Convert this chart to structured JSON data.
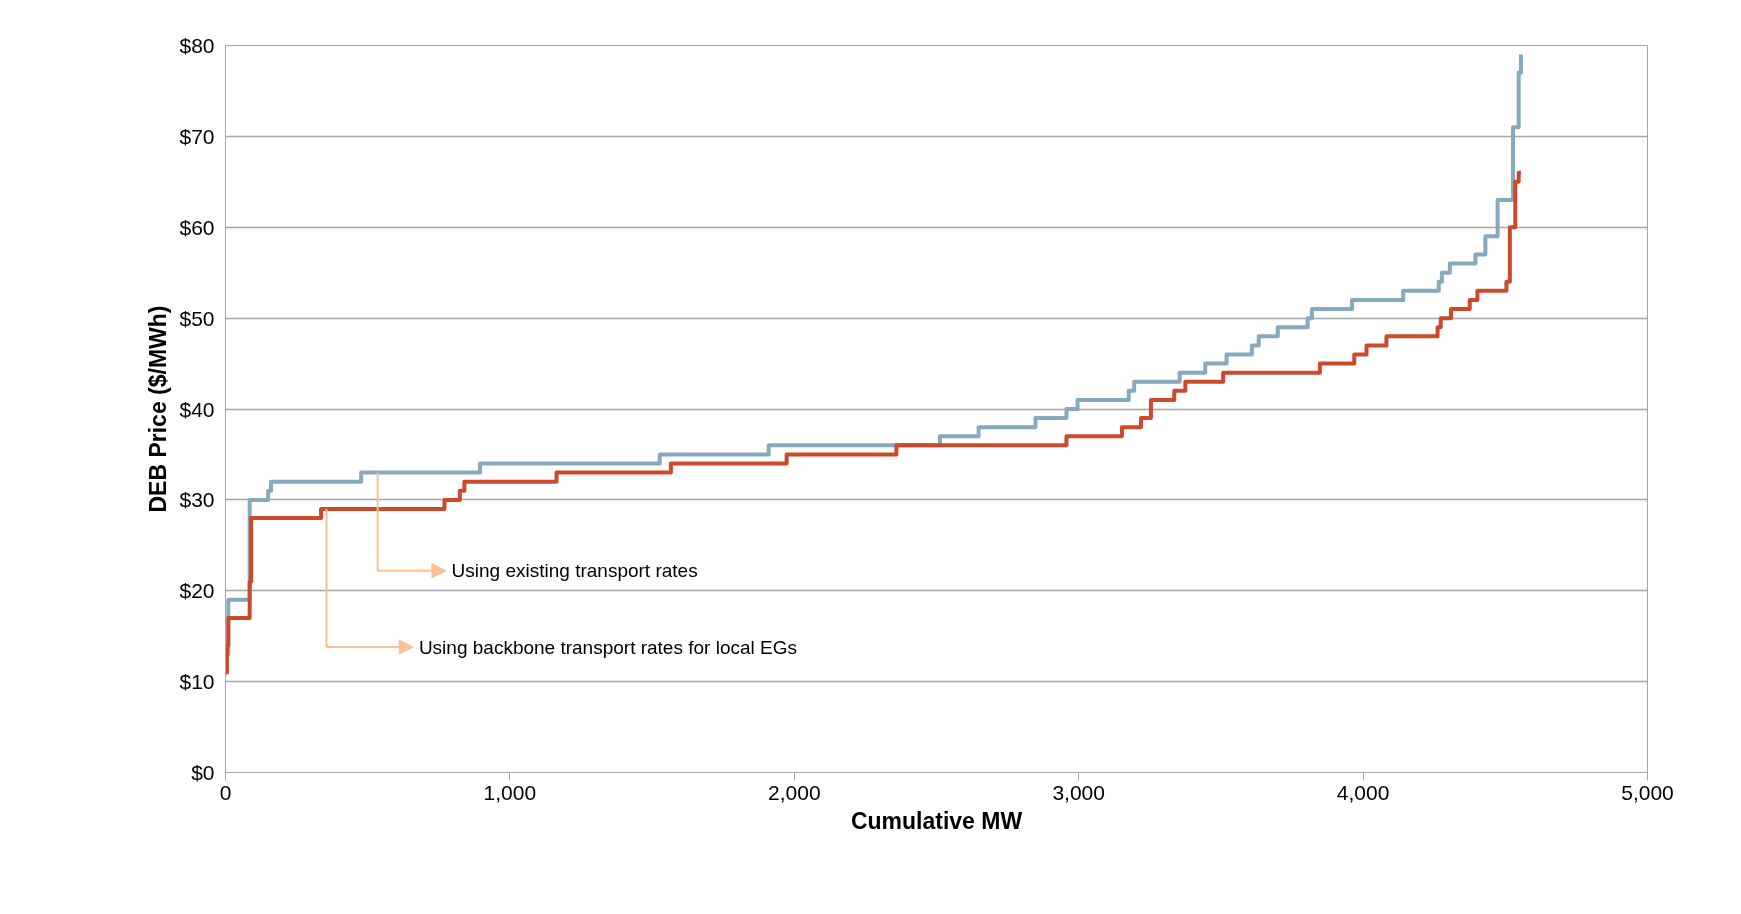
{
  "chart_data": {
    "type": "step",
    "xlabel": "Cumulative MW",
    "ylabel": "DEB Price ($/MWh)",
    "xlim": [
      0,
      5000
    ],
    "ylim": [
      0,
      80
    ],
    "xticks": [
      0,
      {
        "value": 1000,
        "label": "1,000"
      },
      {
        "value": 2000,
        "label": "2,000"
      },
      {
        "value": 3000,
        "label": "3,000"
      },
      {
        "value": 4000,
        "label": "4,000"
      },
      {
        "value": 5000,
        "label": "5,000"
      }
    ],
    "yticks": [
      {
        "value": 0,
        "label": "$0"
      },
      {
        "value": 10,
        "label": "$10"
      },
      {
        "value": 20,
        "label": "$20"
      },
      {
        "value": 30,
        "label": "$30"
      },
      {
        "value": 40,
        "label": "$40"
      },
      {
        "value": 50,
        "label": "$50"
      },
      {
        "value": 60,
        "label": "$60"
      },
      {
        "value": 70,
        "label": "$70"
      },
      {
        "value": 80,
        "label": "$80"
      }
    ],
    "grid": "y",
    "marker": "none",
    "line_style": "solid",
    "series": [
      {
        "color": "#86a9bd",
        "x": [
          0,
          10,
          85,
          150,
          160,
          477,
          895,
          1527,
          1910,
          2512,
          2648,
          2848,
          2957,
          2996,
          3176,
          3195,
          3355,
          3445,
          3520,
          3609,
          3633,
          3700,
          3805,
          3820,
          3961,
          4141,
          4266,
          4277,
          4305,
          4395,
          4430,
          4473,
          4527,
          4547,
          4555
        ],
        "values": [
          13,
          19,
          30,
          31,
          32,
          33,
          34,
          35,
          36,
          37,
          38,
          39,
          40,
          41,
          42,
          43,
          44,
          45,
          46,
          47,
          48,
          49,
          50,
          51,
          52,
          53,
          54,
          55,
          56,
          57,
          59,
          63,
          71,
          77,
          79
        ]
      },
      {
        "color": "#cc4a2a",
        "x": [
          0,
          5,
          10,
          85,
          90,
          336,
          770,
          824,
          840,
          1164,
          1566,
          1973,
          2359,
          2957,
          3152,
          3219,
          3254,
          3336,
          3375,
          3508,
          3848,
          3969,
          4012,
          4082,
          4262,
          4273,
          4309,
          4375,
          4402,
          4504,
          4516,
          4535,
          4547,
          4555
        ],
        "values": [
          11,
          14,
          17,
          21,
          28,
          29,
          30,
          31,
          32,
          33,
          34,
          35,
          36,
          37,
          38,
          39,
          41,
          42,
          43,
          44,
          45,
          46,
          47,
          48,
          49,
          50,
          51,
          52,
          53,
          54,
          60,
          65,
          66,
          66
        ]
      }
    ],
    "annotations": [
      "Using existing transport rates",
      "Using backbone transport rates for local EGs"
    ]
  }
}
